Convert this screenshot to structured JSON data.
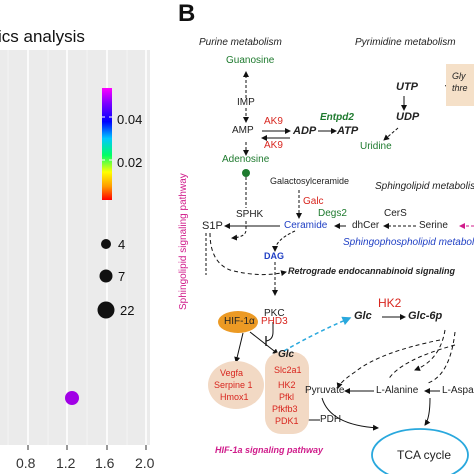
{
  "panel_a": {
    "title_fragment": "ics analysis",
    "legend_colorbar": {
      "ticks": [
        "0.04",
        "0.02"
      ],
      "colors": [
        "#ff00ff",
        "#7a00ff",
        "#0000ff",
        "#00c8ff",
        "#00ff66",
        "#ffff00",
        "#ff9900",
        "#ff0000"
      ]
    },
    "size_legend": [
      "4",
      "7",
      "22"
    ],
    "x_ticks": [
      "0.8",
      "1.2",
      "1.6",
      "2.0"
    ],
    "highlight_dot_color": "#a100e6"
  },
  "panel_b": {
    "label": "B",
    "purine_title": "Purine metabolism",
    "pyrimidine_title": "Pyrimidine metabolism",
    "guanosine": "Guanosine",
    "imp": "IMP",
    "amp": "AMP",
    "ak9_top": "AK9",
    "adp": "ADP",
    "atp": "ATP",
    "ak9_bottom": "AK9",
    "entpd2": "Entpd2",
    "utp": "UTP",
    "udp": "UDP",
    "uridine": "Uridine",
    "gly_box": "Gly\nthre",
    "adenosine": "Adenosine",
    "galactosylceramide": "Galactosylceramide",
    "galc": "Galc",
    "sphingolipid_metabolism": "Sphingolipid metabolis",
    "sphk": "SPHK",
    "s1p": "S1P",
    "ceramide": "Ceramide",
    "degs2": "Degs2",
    "dhcer": "dhCer",
    "cers": "CerS",
    "serine": "Serine",
    "sphingophospholipid": "Sphingophospholipid metabol",
    "sphingolipid_pathway": "Sphingolipid signaling pathway",
    "dag": "DAG",
    "retrograde": "Retrograde endocannabinoid signaling",
    "pkc": "PKC",
    "hif1a": "HIF-1α",
    "phd3": "PHD3",
    "hk2": "HK2",
    "glc_right": "Glc",
    "glc6p": "Glc-6p",
    "glc_left": "Glc",
    "targets_left": [
      "Vegfa",
      "Serpine 1",
      "Hmox1"
    ],
    "targets_right": [
      "Slc2a1",
      "HK2",
      "Pfkl",
      "Pfkfb3",
      "PDK1"
    ],
    "pyruvate": "Pyruvate",
    "l_alanine": "L-Alanine",
    "l_aspa": "L-Aspa",
    "pdh": "PDH",
    "tca": "TCA cycle",
    "hif_pathway": "HIF-1a signaling pathway"
  }
}
